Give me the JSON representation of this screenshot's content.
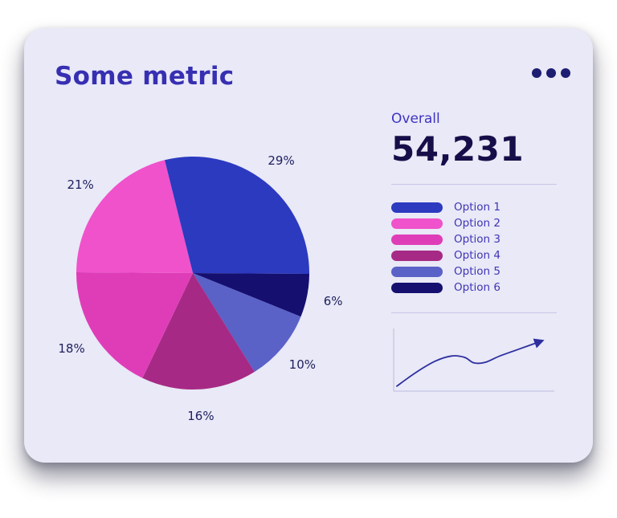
{
  "card": {
    "title": "Some metric",
    "menu_icon": "ellipsis-icon"
  },
  "overall": {
    "label": "Overall",
    "value": "54,231"
  },
  "colors": {
    "card_bg": "#e9e9f7",
    "title": "#372fb2",
    "overall_value": "#150e49",
    "divider": "#c9c7e8",
    "sparkline": "#2d2f9f",
    "axis": "#bcbcdc"
  },
  "chart_data": [
    {
      "type": "pie",
      "title": "Some metric",
      "slices": [
        {
          "label": "Option 1",
          "value": 29,
          "color": "#2c3ac0"
        },
        {
          "label": "Option 2",
          "value": 21,
          "color": "#ef52cb"
        },
        {
          "label": "Option 3",
          "value": 18,
          "color": "#df3db8"
        },
        {
          "label": "Option 4",
          "value": 16,
          "color": "#a62a85"
        },
        {
          "label": "Option 5",
          "value": 10,
          "color": "#5a61c7"
        },
        {
          "label": "Option 6",
          "value": 6,
          "color": "#151070"
        }
      ],
      "label_format": "percent",
      "start_angle_deg": -14,
      "clockwise_order": [
        0,
        5,
        4,
        3,
        2,
        1
      ],
      "legend_position": "right"
    },
    {
      "type": "line",
      "name": "trend-sparkline",
      "color": "#2d2f9f",
      "axes": "left-bottom",
      "arrow_end": true,
      "points_pct": [
        [
          2,
          92
        ],
        [
          14,
          70
        ],
        [
          26,
          52
        ],
        [
          36,
          44
        ],
        [
          44,
          46
        ],
        [
          50,
          55
        ],
        [
          57,
          54
        ],
        [
          66,
          44
        ],
        [
          78,
          33
        ],
        [
          92,
          20
        ]
      ]
    }
  ]
}
